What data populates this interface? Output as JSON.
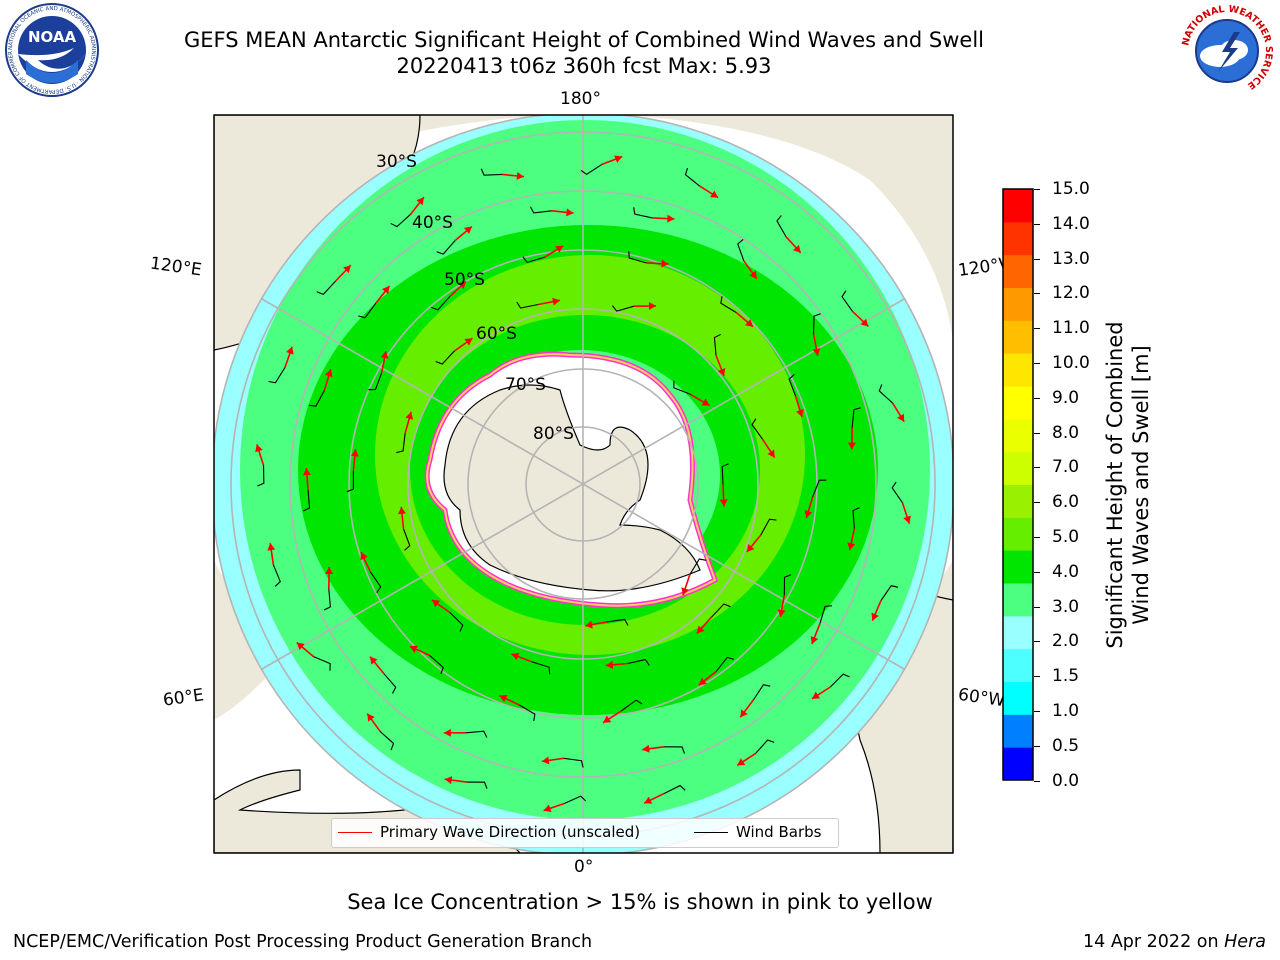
{
  "header": {
    "title_line1": "GEFS MEAN Antarctic Significant Height of Combined Wind Waves and Swell",
    "title_line2": "20220413 t06z 360h fcst   Max: 5.93"
  },
  "logos": {
    "left_text": "NOAA",
    "left_ring_text": "NATIONAL OCEANIC AND ATMOSPHERIC ADMINISTRATION · U.S. DEPARTMENT OF COMMERCE",
    "right_ring_text": "NATIONAL WEATHER SERVICE"
  },
  "map": {
    "longitude_labels": {
      "top": "180°",
      "bottom": "0°",
      "upper_left": "120°E",
      "lower_left": "60°E",
      "upper_right": "120°W",
      "lower_right": "60°W"
    },
    "latitude_labels": [
      "30°S",
      "40°S",
      "50°S",
      "60°S",
      "70°S",
      "80°S"
    ],
    "colors": {
      "land": "#ede9da",
      "ocean_ring": "#9affff",
      "band_lightgreen": "#4dff80",
      "band_green": "#00e600",
      "band_yellowgreen": "#66ee00",
      "ice_edge_pink": "#ff33cc",
      "ice_edge_yellow": "#ffcc66",
      "arrow": "#ff0000",
      "barb": "#000000",
      "grid": "#b4b4b4"
    }
  },
  "legend": {
    "wave_label": "Primary Wave Direction (unscaled)",
    "barb_label": "Wind Barbs"
  },
  "colorbar": {
    "label": "Significant Height of Combined Wind Waves and Swell [m]",
    "ticks": [
      "15.0",
      "14.0",
      "13.0",
      "12.0",
      "11.0",
      "10.0",
      "9.0",
      "8.0",
      "7.0",
      "6.0",
      "5.0",
      "4.0",
      "3.0",
      "2.0",
      "1.5",
      "1.0",
      "0.5",
      "0.0"
    ],
    "colors": [
      "#0000ff",
      "#0080ff",
      "#00ffff",
      "#4dffff",
      "#99ffff",
      "#4dff80",
      "#00e600",
      "#66ee00",
      "#99f000",
      "#ccff00",
      "#eaff00",
      "#ffff00",
      "#ffe600",
      "#ffbf00",
      "#ff9900",
      "#ff6600",
      "#ff3300",
      "#ff0000"
    ]
  },
  "note": "Sea Ice Concentration > 15% is shown in pink to yellow",
  "footer": {
    "left": "NCEP/EMC/Verification Post Processing Product Generation Branch",
    "right_date": "14 Apr 2022 on ",
    "right_host": "Hera"
  }
}
